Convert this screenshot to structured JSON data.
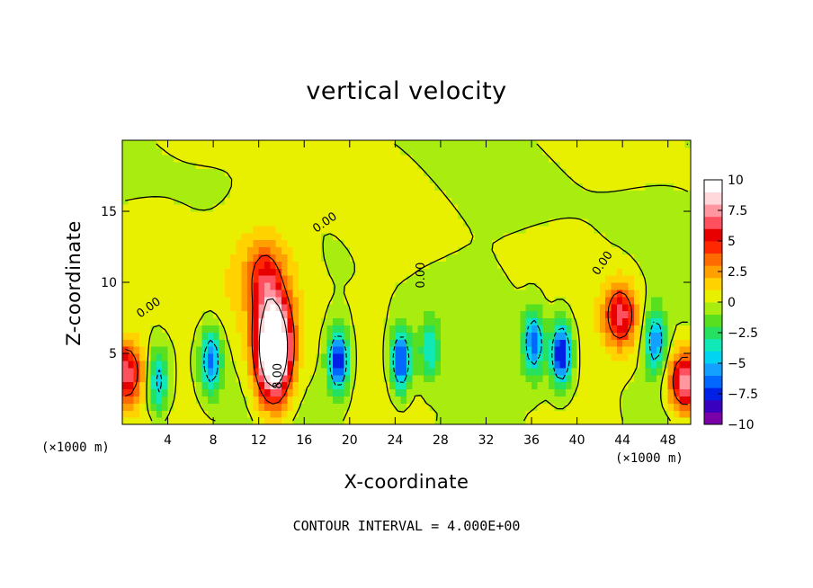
{
  "chart_data": {
    "type": "heatmap",
    "title": "vertical velocity",
    "xlabel": "X-coordinate",
    "ylabel": "Z-coordinate",
    "x_unit": "(×1000 m)",
    "xlim": [
      0,
      50
    ],
    "ylim": [
      0,
      20
    ],
    "x_ticks": [
      4,
      8,
      12,
      16,
      20,
      24,
      28,
      32,
      36,
      40,
      44,
      48
    ],
    "y_ticks": [
      5,
      10,
      15
    ],
    "colorbar": {
      "range": [
        -10,
        10
      ],
      "labels": [
        "10",
        "7.5",
        "5",
        "2.5",
        "0",
        "−2.5",
        "−5",
        "−7.5",
        "−10"
      ],
      "colors": [
        "#7a00a8",
        "#3a00c0",
        "#0020e8",
        "#0068ff",
        "#14a0ff",
        "#00d4f0",
        "#10e8b8",
        "#26e060",
        "#58e020",
        "#a8ec10",
        "#e8f000",
        "#ffd200",
        "#ffa000",
        "#ff6a00",
        "#ff2800",
        "#e80000",
        "#ff5060",
        "#ff96a0",
        "#ffd8dc",
        "#ffffff"
      ]
    },
    "contour_interval": "CONTOUR INTERVAL = 4.000E+00",
    "contour_labels": [
      "0.00",
      "0.00",
      "0.00",
      "0.00",
      "8.00"
    ],
    "features": [
      {
        "x": 13.3,
        "z": 5.2,
        "w": 14,
        "kind": "updraft"
      },
      {
        "x": 43.8,
        "z": 7.7,
        "w": 6.5,
        "kind": "updraft"
      },
      {
        "x": 49.5,
        "z": 3.0,
        "w": 8,
        "kind": "updraft"
      },
      {
        "x": 0.3,
        "z": 3.7,
        "w": 7,
        "kind": "updraft"
      },
      {
        "x": 12.5,
        "z": 10.5,
        "w": 3,
        "kind": "updraft"
      },
      {
        "x": 19.0,
        "z": 4.5,
        "w": -8.5,
        "kind": "downdraft"
      },
      {
        "x": 24.5,
        "z": 4.5,
        "w": -8,
        "kind": "downdraft"
      },
      {
        "x": 7.8,
        "z": 4.5,
        "w": -6.5,
        "kind": "downdraft"
      },
      {
        "x": 38.6,
        "z": 5.0,
        "w": -8.5,
        "kind": "downdraft"
      },
      {
        "x": 36.2,
        "z": 5.8,
        "w": -6.5,
        "kind": "downdraft"
      },
      {
        "x": 46.9,
        "z": 5.9,
        "w": -6,
        "kind": "downdraft"
      },
      {
        "x": 3.2,
        "z": 3.0,
        "w": -5,
        "kind": "downdraft"
      },
      {
        "x": 27.0,
        "z": 5.2,
        "w": -4,
        "kind": "downdraft"
      }
    ]
  }
}
